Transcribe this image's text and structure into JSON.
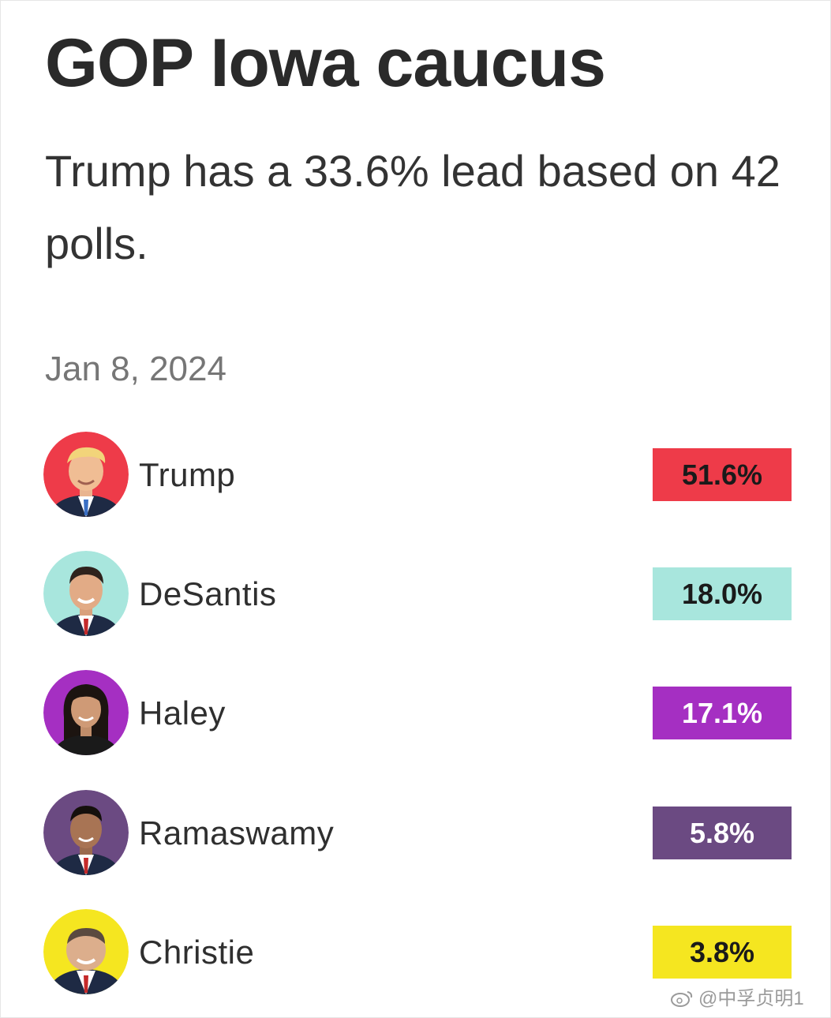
{
  "title": "GOP Iowa caucus",
  "subtitle": "Trump has a 33.6% lead based on 42 polls.",
  "date": "Jan 8, 2024",
  "watermark": "@中孚贞明1",
  "colors": {
    "Trump": "#ee3b49",
    "DeSantis": "#a8e6dd",
    "Haley": "#a52fc2",
    "Ramaswamy": "#6b4a82",
    "Christie": "#f5e620"
  },
  "chart_data": {
    "type": "bar",
    "categories": [
      "Trump",
      "DeSantis",
      "Haley",
      "Ramaswamy",
      "Christie"
    ],
    "values": [
      51.6,
      18.0,
      17.1,
      5.8,
      3.8
    ],
    "value_labels": [
      "51.6%",
      "18.0%",
      "17.1%",
      "5.8%",
      "3.8%"
    ],
    "unit": "%",
    "title": "GOP Iowa caucus",
    "subtitle": "Trump has a 33.6% lead based on 42 polls.",
    "date": "Jan 8, 2024"
  },
  "candidates": [
    {
      "name": "Trump",
      "pct": "51.6%",
      "avatar_icon": "trump-avatar-icon",
      "bg": "#ee3b49",
      "text": "#1a1a1a"
    },
    {
      "name": "DeSantis",
      "pct": "18.0%",
      "avatar_icon": "desantis-avatar-icon",
      "bg": "#a8e6dd",
      "text": "#1a1a1a"
    },
    {
      "name": "Haley",
      "pct": "17.1%",
      "avatar_icon": "haley-avatar-icon",
      "bg": "#a52fc2",
      "text": "#ffffff"
    },
    {
      "name": "Ramaswamy",
      "pct": "5.8%",
      "avatar_icon": "ramaswamy-avatar-icon",
      "bg": "#6b4a82",
      "text": "#ffffff"
    },
    {
      "name": "Christie",
      "pct": "3.8%",
      "avatar_icon": "christie-avatar-icon",
      "bg": "#f5e620",
      "text": "#1a1a1a"
    }
  ]
}
